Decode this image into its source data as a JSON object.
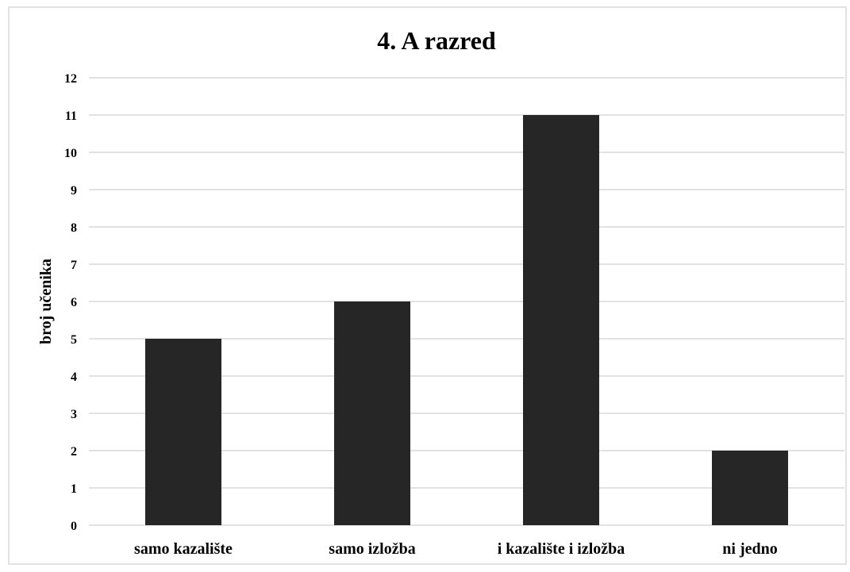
{
  "chart_data": {
    "type": "bar",
    "title": "4. A razred",
    "xlabel": "",
    "ylabel": "broj učenika",
    "categories": [
      "samo kazalište",
      "samo izložba",
      "i kazalište i izložba",
      "ni jedno"
    ],
    "values": [
      5,
      6,
      11,
      2
    ],
    "ylim": [
      0,
      12
    ],
    "yticks": [
      0,
      1,
      2,
      3,
      4,
      5,
      6,
      7,
      8,
      9,
      10,
      11,
      12
    ],
    "grid": true,
    "legend": "none",
    "bar_color": "#262626",
    "grid_color": "#d9d9d9",
    "border_color": "#d9d9d9"
  }
}
